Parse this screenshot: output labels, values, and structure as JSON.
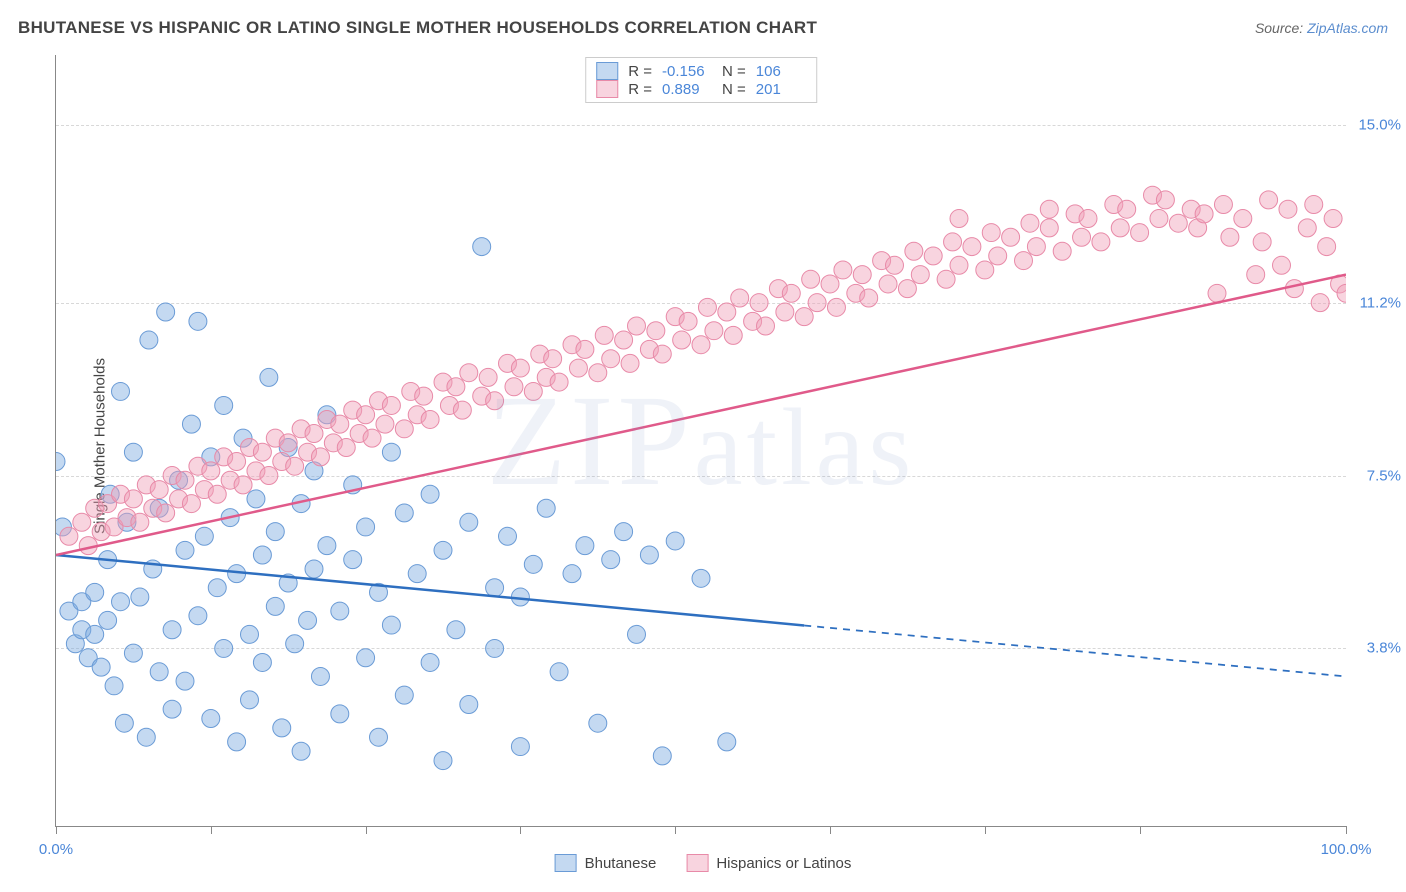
{
  "title": "BHUTANESE VS HISPANIC OR LATINO SINGLE MOTHER HOUSEHOLDS CORRELATION CHART",
  "source_prefix": "Source: ",
  "source_link": "ZipAtlas.com",
  "ylabel": "Single Mother Households",
  "watermark": "ZIPatlas",
  "chart": {
    "type": "scatter-with-regression",
    "background_color": "#ffffff",
    "grid_color": "#d8d8d8",
    "axis_color": "#888888",
    "xlim": [
      0,
      100
    ],
    "ylim": [
      0,
      16.5
    ],
    "x_ticks": [
      0,
      12,
      24,
      36,
      48,
      60,
      72,
      84,
      100
    ],
    "x_tick_labels": {
      "0": "0.0%",
      "100": "100.0%"
    },
    "y_gridlines": [
      3.8,
      7.5,
      11.2,
      15.0
    ],
    "y_tick_labels": [
      "3.8%",
      "7.5%",
      "11.2%",
      "15.0%"
    ],
    "tick_label_color": "#4a86d8",
    "series": [
      {
        "name": "Bhutanese",
        "marker_fill": "rgba(125,170,225,0.45)",
        "marker_stroke": "#6a9bd6",
        "marker_radius": 9,
        "line_color": "#2e6fc0",
        "line_width": 2.5,
        "regression": {
          "x1": 0,
          "y1": 5.8,
          "x2": 100,
          "y2": 3.2,
          "solid_until_x": 58
        },
        "stats": {
          "R": "-0.156",
          "N": "106"
        },
        "points": [
          [
            0,
            7.8
          ],
          [
            0.5,
            6.4
          ],
          [
            1,
            4.6
          ],
          [
            1.5,
            3.9
          ],
          [
            2,
            4.2
          ],
          [
            2,
            4.8
          ],
          [
            2.5,
            3.6
          ],
          [
            3,
            5.0
          ],
          [
            3,
            4.1
          ],
          [
            3.5,
            3.4
          ],
          [
            4,
            4.4
          ],
          [
            4,
            5.7
          ],
          [
            4.2,
            7.1
          ],
          [
            4.5,
            3.0
          ],
          [
            5,
            9.3
          ],
          [
            5,
            4.8
          ],
          [
            5.3,
            2.2
          ],
          [
            5.5,
            6.5
          ],
          [
            6,
            3.7
          ],
          [
            6,
            8.0
          ],
          [
            6.5,
            4.9
          ],
          [
            7,
            1.9
          ],
          [
            7.2,
            10.4
          ],
          [
            7.5,
            5.5
          ],
          [
            8,
            3.3
          ],
          [
            8,
            6.8
          ],
          [
            8.5,
            11.0
          ],
          [
            9,
            4.2
          ],
          [
            9,
            2.5
          ],
          [
            9.5,
            7.4
          ],
          [
            10,
            5.9
          ],
          [
            10,
            3.1
          ],
          [
            10.5,
            8.6
          ],
          [
            11,
            10.8
          ],
          [
            11,
            4.5
          ],
          [
            11.5,
            6.2
          ],
          [
            12,
            2.3
          ],
          [
            12,
            7.9
          ],
          [
            12.5,
            5.1
          ],
          [
            13,
            9.0
          ],
          [
            13,
            3.8
          ],
          [
            13.5,
            6.6
          ],
          [
            14,
            1.8
          ],
          [
            14,
            5.4
          ],
          [
            14.5,
            8.3
          ],
          [
            15,
            4.1
          ],
          [
            15,
            2.7
          ],
          [
            15.5,
            7.0
          ],
          [
            16,
            5.8
          ],
          [
            16,
            3.5
          ],
          [
            16.5,
            9.6
          ],
          [
            17,
            6.3
          ],
          [
            17,
            4.7
          ],
          [
            17.5,
            2.1
          ],
          [
            18,
            8.1
          ],
          [
            18,
            5.2
          ],
          [
            18.5,
            3.9
          ],
          [
            19,
            6.9
          ],
          [
            19,
            1.6
          ],
          [
            19.5,
            4.4
          ],
          [
            20,
            7.6
          ],
          [
            20,
            5.5
          ],
          [
            20.5,
            3.2
          ],
          [
            21,
            8.8
          ],
          [
            21,
            6.0
          ],
          [
            22,
            4.6
          ],
          [
            22,
            2.4
          ],
          [
            23,
            5.7
          ],
          [
            23,
            7.3
          ],
          [
            24,
            3.6
          ],
          [
            24,
            6.4
          ],
          [
            25,
            1.9
          ],
          [
            25,
            5.0
          ],
          [
            26,
            8.0
          ],
          [
            26,
            4.3
          ],
          [
            27,
            6.7
          ],
          [
            27,
            2.8
          ],
          [
            28,
            5.4
          ],
          [
            29,
            3.5
          ],
          [
            29,
            7.1
          ],
          [
            30,
            1.4
          ],
          [
            30,
            5.9
          ],
          [
            31,
            4.2
          ],
          [
            32,
            6.5
          ],
          [
            32,
            2.6
          ],
          [
            33,
            12.4
          ],
          [
            34,
            5.1
          ],
          [
            34,
            3.8
          ],
          [
            35,
            6.2
          ],
          [
            36,
            1.7
          ],
          [
            36,
            4.9
          ],
          [
            37,
            5.6
          ],
          [
            38,
            6.8
          ],
          [
            39,
            3.3
          ],
          [
            40,
            5.4
          ],
          [
            41,
            6.0
          ],
          [
            42,
            2.2
          ],
          [
            43,
            5.7
          ],
          [
            44,
            6.3
          ],
          [
            45,
            4.1
          ],
          [
            46,
            5.8
          ],
          [
            47,
            1.5
          ],
          [
            48,
            6.1
          ],
          [
            50,
            5.3
          ],
          [
            52,
            1.8
          ]
        ]
      },
      {
        "name": "Hispanics or Latinos",
        "marker_fill": "rgba(240,160,185,0.45)",
        "marker_stroke": "#e88aa8",
        "marker_radius": 9,
        "line_color": "#e05a8a",
        "line_width": 2.5,
        "regression": {
          "x1": 0,
          "y1": 5.8,
          "x2": 100,
          "y2": 11.8,
          "solid_until_x": 100
        },
        "stats": {
          "R": "0.889",
          "N": "201"
        },
        "points": [
          [
            1,
            6.2
          ],
          [
            2,
            6.5
          ],
          [
            2.5,
            6.0
          ],
          [
            3,
            6.8
          ],
          [
            3.5,
            6.3
          ],
          [
            4,
            6.9
          ],
          [
            4.5,
            6.4
          ],
          [
            5,
            7.1
          ],
          [
            5.5,
            6.6
          ],
          [
            6,
            7.0
          ],
          [
            6.5,
            6.5
          ],
          [
            7,
            7.3
          ],
          [
            7.5,
            6.8
          ],
          [
            8,
            7.2
          ],
          [
            8.5,
            6.7
          ],
          [
            9,
            7.5
          ],
          [
            9.5,
            7.0
          ],
          [
            10,
            7.4
          ],
          [
            10.5,
            6.9
          ],
          [
            11,
            7.7
          ],
          [
            11.5,
            7.2
          ],
          [
            12,
            7.6
          ],
          [
            12.5,
            7.1
          ],
          [
            13,
            7.9
          ],
          [
            13.5,
            7.4
          ],
          [
            14,
            7.8
          ],
          [
            14.5,
            7.3
          ],
          [
            15,
            8.1
          ],
          [
            15.5,
            7.6
          ],
          [
            16,
            8.0
          ],
          [
            16.5,
            7.5
          ],
          [
            17,
            8.3
          ],
          [
            17.5,
            7.8
          ],
          [
            18,
            8.2
          ],
          [
            18.5,
            7.7
          ],
          [
            19,
            8.5
          ],
          [
            19.5,
            8.0
          ],
          [
            20,
            8.4
          ],
          [
            20.5,
            7.9
          ],
          [
            21,
            8.7
          ],
          [
            21.5,
            8.2
          ],
          [
            22,
            8.6
          ],
          [
            22.5,
            8.1
          ],
          [
            23,
            8.9
          ],
          [
            23.5,
            8.4
          ],
          [
            24,
            8.8
          ],
          [
            24.5,
            8.3
          ],
          [
            25,
            9.1
          ],
          [
            25.5,
            8.6
          ],
          [
            26,
            9.0
          ],
          [
            27,
            8.5
          ],
          [
            27.5,
            9.3
          ],
          [
            28,
            8.8
          ],
          [
            28.5,
            9.2
          ],
          [
            29,
            8.7
          ],
          [
            30,
            9.5
          ],
          [
            30.5,
            9.0
          ],
          [
            31,
            9.4
          ],
          [
            31.5,
            8.9
          ],
          [
            32,
            9.7
          ],
          [
            33,
            9.2
          ],
          [
            33.5,
            9.6
          ],
          [
            34,
            9.1
          ],
          [
            35,
            9.9
          ],
          [
            35.5,
            9.4
          ],
          [
            36,
            9.8
          ],
          [
            37,
            9.3
          ],
          [
            37.5,
            10.1
          ],
          [
            38,
            9.6
          ],
          [
            38.5,
            10.0
          ],
          [
            39,
            9.5
          ],
          [
            40,
            10.3
          ],
          [
            40.5,
            9.8
          ],
          [
            41,
            10.2
          ],
          [
            42,
            9.7
          ],
          [
            42.5,
            10.5
          ],
          [
            43,
            10.0
          ],
          [
            44,
            10.4
          ],
          [
            44.5,
            9.9
          ],
          [
            45,
            10.7
          ],
          [
            46,
            10.2
          ],
          [
            46.5,
            10.6
          ],
          [
            47,
            10.1
          ],
          [
            48,
            10.9
          ],
          [
            48.5,
            10.4
          ],
          [
            49,
            10.8
          ],
          [
            50,
            10.3
          ],
          [
            50.5,
            11.1
          ],
          [
            51,
            10.6
          ],
          [
            52,
            11.0
          ],
          [
            52.5,
            10.5
          ],
          [
            53,
            11.3
          ],
          [
            54,
            10.8
          ],
          [
            54.5,
            11.2
          ],
          [
            55,
            10.7
          ],
          [
            56,
            11.5
          ],
          [
            56.5,
            11.0
          ],
          [
            57,
            11.4
          ],
          [
            58,
            10.9
          ],
          [
            58.5,
            11.7
          ],
          [
            59,
            11.2
          ],
          [
            60,
            11.6
          ],
          [
            60.5,
            11.1
          ],
          [
            61,
            11.9
          ],
          [
            62,
            11.4
          ],
          [
            62.5,
            11.8
          ],
          [
            63,
            11.3
          ],
          [
            64,
            12.1
          ],
          [
            64.5,
            11.6
          ],
          [
            65,
            12.0
          ],
          [
            66,
            11.5
          ],
          [
            66.5,
            12.3
          ],
          [
            67,
            11.8
          ],
          [
            68,
            12.2
          ],
          [
            69,
            11.7
          ],
          [
            69.5,
            12.5
          ],
          [
            70,
            13.0
          ],
          [
            70,
            12.0
          ],
          [
            71,
            12.4
          ],
          [
            72,
            11.9
          ],
          [
            72.5,
            12.7
          ],
          [
            73,
            12.2
          ],
          [
            74,
            12.6
          ],
          [
            75,
            12.1
          ],
          [
            75.5,
            12.9
          ],
          [
            76,
            12.4
          ],
          [
            77,
            13.2
          ],
          [
            77,
            12.8
          ],
          [
            78,
            12.3
          ],
          [
            79,
            13.1
          ],
          [
            79.5,
            12.6
          ],
          [
            80,
            13.0
          ],
          [
            81,
            12.5
          ],
          [
            82,
            13.3
          ],
          [
            82.5,
            12.8
          ],
          [
            83,
            13.2
          ],
          [
            84,
            12.7
          ],
          [
            85,
            13.5
          ],
          [
            85.5,
            13.0
          ],
          [
            86,
            13.4
          ],
          [
            87,
            12.9
          ],
          [
            88,
            13.2
          ],
          [
            88.5,
            12.8
          ],
          [
            89,
            13.1
          ],
          [
            90,
            11.4
          ],
          [
            90.5,
            13.3
          ],
          [
            91,
            12.6
          ],
          [
            92,
            13.0
          ],
          [
            93,
            11.8
          ],
          [
            93.5,
            12.5
          ],
          [
            94,
            13.4
          ],
          [
            95,
            12.0
          ],
          [
            95.5,
            13.2
          ],
          [
            96,
            11.5
          ],
          [
            97,
            12.8
          ],
          [
            97.5,
            13.3
          ],
          [
            98,
            11.2
          ],
          [
            98.5,
            12.4
          ],
          [
            99,
            13.0
          ],
          [
            99.5,
            11.6
          ],
          [
            100,
            11.4
          ]
        ]
      }
    ]
  }
}
